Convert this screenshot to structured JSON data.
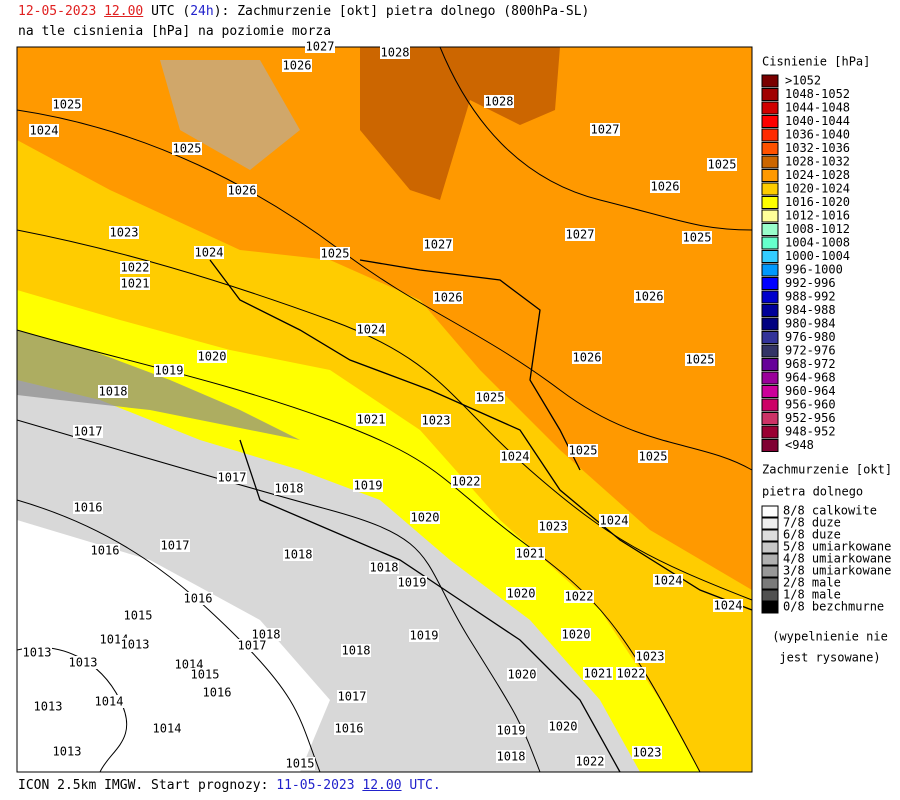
{
  "header": {
    "date": "12-05-2023",
    "time": "12.00",
    "tz": "UTC",
    "lead_open": "(",
    "lead": "24h",
    "lead_close": "):",
    "title": "Zachmurzenie [okt] pietra dolnego (800hPa-SL)",
    "subtitle": "na tle cisnienia [hPa] na poziomie morza"
  },
  "footer": {
    "model": "ICON 2.5km IMGW. Start prognozy:",
    "date": "11-05-2023",
    "time": "12.00",
    "tz": "UTC."
  },
  "pressure_legend": {
    "title": "Cisnienie [hPa]",
    "items": [
      {
        "label": ">1052",
        "color": "#7a0000"
      },
      {
        "label": "1048-1052",
        "color": "#a00000"
      },
      {
        "label": "1044-1048",
        "color": "#d00000"
      },
      {
        "label": "1040-1044",
        "color": "#ff0000"
      },
      {
        "label": "1036-1040",
        "color": "#ff2a00"
      },
      {
        "label": "1032-1036",
        "color": "#ff5200"
      },
      {
        "label": "1028-1032",
        "color": "#cc6600"
      },
      {
        "label": "1024-1028",
        "color": "#ff9900"
      },
      {
        "label": "1020-1024",
        "color": "#ffcc00"
      },
      {
        "label": "1016-1020",
        "color": "#ffff00"
      },
      {
        "label": "1012-1016",
        "color": "#ffff99"
      },
      {
        "label": "1008-1012",
        "color": "#99ffcc"
      },
      {
        "label": "1004-1008",
        "color": "#66ffcc"
      },
      {
        "label": "1000-1004",
        "color": "#33ccff"
      },
      {
        "label": "996-1000",
        "color": "#0099ff"
      },
      {
        "label": "992-996",
        "color": "#0000ff"
      },
      {
        "label": "988-992",
        "color": "#0000cc"
      },
      {
        "label": "984-988",
        "color": "#000099"
      },
      {
        "label": "980-984",
        "color": "#000080"
      },
      {
        "label": "976-980",
        "color": "#333399"
      },
      {
        "label": "972-976",
        "color": "#333366"
      },
      {
        "label": "968-972",
        "color": "#660099"
      },
      {
        "label": "964-968",
        "color": "#990099"
      },
      {
        "label": "960-964",
        "color": "#cc0099"
      },
      {
        "label": "956-960",
        "color": "#cc0066"
      },
      {
        "label": "952-956",
        "color": "#cc3366"
      },
      {
        "label": "948-952",
        "color": "#990033"
      },
      {
        "label": "<948",
        "color": "#800033"
      }
    ]
  },
  "cloud_legend": {
    "title": "Zachmurzenie [okt]",
    "subtitle": "pietra dolnego",
    "items": [
      {
        "label": "8/8 calkowite",
        "color": "#ffffff"
      },
      {
        "label": "7/8 duze",
        "color": "#eeeeee"
      },
      {
        "label": "6/8 duze",
        "color": "#dddddd"
      },
      {
        "label": "5/8 umiarkowane",
        "color": "#c8c8c8"
      },
      {
        "label": "4/8 umiarkowane",
        "color": "#b0b0b0"
      },
      {
        "label": "3/8 umiarkowane",
        "color": "#989898"
      },
      {
        "label": "2/8 male",
        "color": "#7a7a7a"
      },
      {
        "label": "1/8 male",
        "color": "#505050"
      },
      {
        "label": "0/8 bezchmurne",
        "color": "#000000"
      }
    ],
    "note": [
      "(wypelnienie nie",
      "jest rysowane)"
    ]
  },
  "isobar_labels": [
    "1027",
    "1028",
    "1026",
    "1025",
    "1028",
    "1024",
    "1027",
    "1025",
    "1025",
    "1026",
    "1026",
    "1023",
    "1027",
    "1025",
    "1027",
    "1024",
    "1025",
    "1022",
    "1021",
    "1026",
    "1026",
    "1024",
    "1020",
    "1026",
    "1025",
    "1019",
    "1018",
    "1025",
    "1021",
    "1023",
    "1017",
    "1025",
    "1024",
    "1025",
    "1017",
    "1022",
    "1019",
    "1018",
    "1016",
    "1020",
    "1024",
    "1023",
    "1017",
    "1016",
    "1018",
    "1021",
    "1018",
    "1019",
    "1024",
    "1020",
    "1022",
    "1016",
    "1024",
    "1015",
    "1018",
    "1019",
    "1020",
    "1014",
    "1017",
    "1013",
    "1013",
    "1013",
    "1018",
    "1023",
    "1014",
    "1015",
    "1020",
    "1021",
    "1022",
    "1016",
    "1014",
    "1017",
    "1013",
    "1016",
    "1014",
    "1019",
    "1020",
    "1013",
    "1015",
    "1018",
    "1022",
    "1023"
  ]
}
